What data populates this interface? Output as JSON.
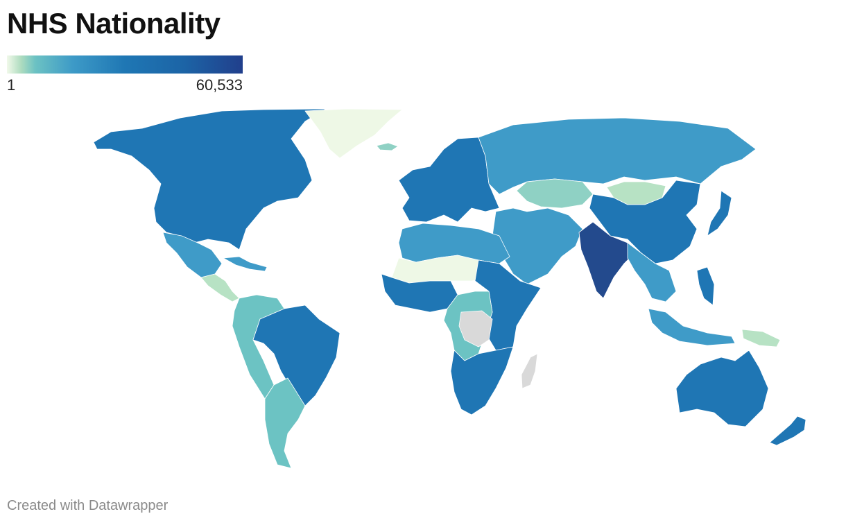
{
  "title": "NHS Nationality",
  "legend": {
    "min_label": "1",
    "max_label": "60,533",
    "colors": [
      "#f1f9ea",
      "#aedcbf",
      "#6cc2c3",
      "#3d9ac7",
      "#1f77b4",
      "#1c64a6",
      "#213f8c"
    ]
  },
  "credit": "Created with Datawrapper",
  "colors": {
    "no_data": "#d9d9d9",
    "level1": "#eef8e6",
    "level2": "#b7e2c4",
    "level3": "#8fd1c4",
    "level4": "#6cc3c3",
    "level5": "#3f9bc8",
    "level6": "#1f76b4",
    "level7": "#234a8d"
  },
  "regions": [
    {
      "name": "North America",
      "level": "level6"
    },
    {
      "name": "Greenland",
      "level": "level1"
    },
    {
      "name": "Iceland",
      "level": "level3"
    },
    {
      "name": "Mexico",
      "level": "level5"
    },
    {
      "name": "Central America",
      "level": "level2"
    },
    {
      "name": "Caribbean",
      "level": "level5"
    },
    {
      "name": "Brazil",
      "level": "level6"
    },
    {
      "name": "Andean South America",
      "level": "level4"
    },
    {
      "name": "Southern Cone",
      "level": "level4"
    },
    {
      "name": "Europe",
      "level": "level6"
    },
    {
      "name": "Russia",
      "level": "level5"
    },
    {
      "name": "Kazakhstan",
      "level": "level3"
    },
    {
      "name": "Mongolia",
      "level": "level2"
    },
    {
      "name": "China",
      "level": "level6"
    },
    {
      "name": "India",
      "level": "level7"
    },
    {
      "name": "Middle East",
      "level": "level5"
    },
    {
      "name": "North Africa",
      "level": "level5"
    },
    {
      "name": "Sahel",
      "level": "level1"
    },
    {
      "name": "West Africa",
      "level": "level6"
    },
    {
      "name": "Central Africa",
      "level": "level4"
    },
    {
      "name": "DR Congo",
      "level": "no_data"
    },
    {
      "name": "East Africa",
      "level": "level6"
    },
    {
      "name": "Southern Africa",
      "level": "level6"
    },
    {
      "name": "Madagascar",
      "level": "no_data"
    },
    {
      "name": "Southeast Asia",
      "level": "level5"
    },
    {
      "name": "Philippines",
      "level": "level6"
    },
    {
      "name": "Japan",
      "level": "level6"
    },
    {
      "name": "Indonesia",
      "level": "level5"
    },
    {
      "name": "Papua New Guinea",
      "level": "level2"
    },
    {
      "name": "Australia",
      "level": "level6"
    },
    {
      "name": "New Zealand",
      "level": "level6"
    }
  ]
}
